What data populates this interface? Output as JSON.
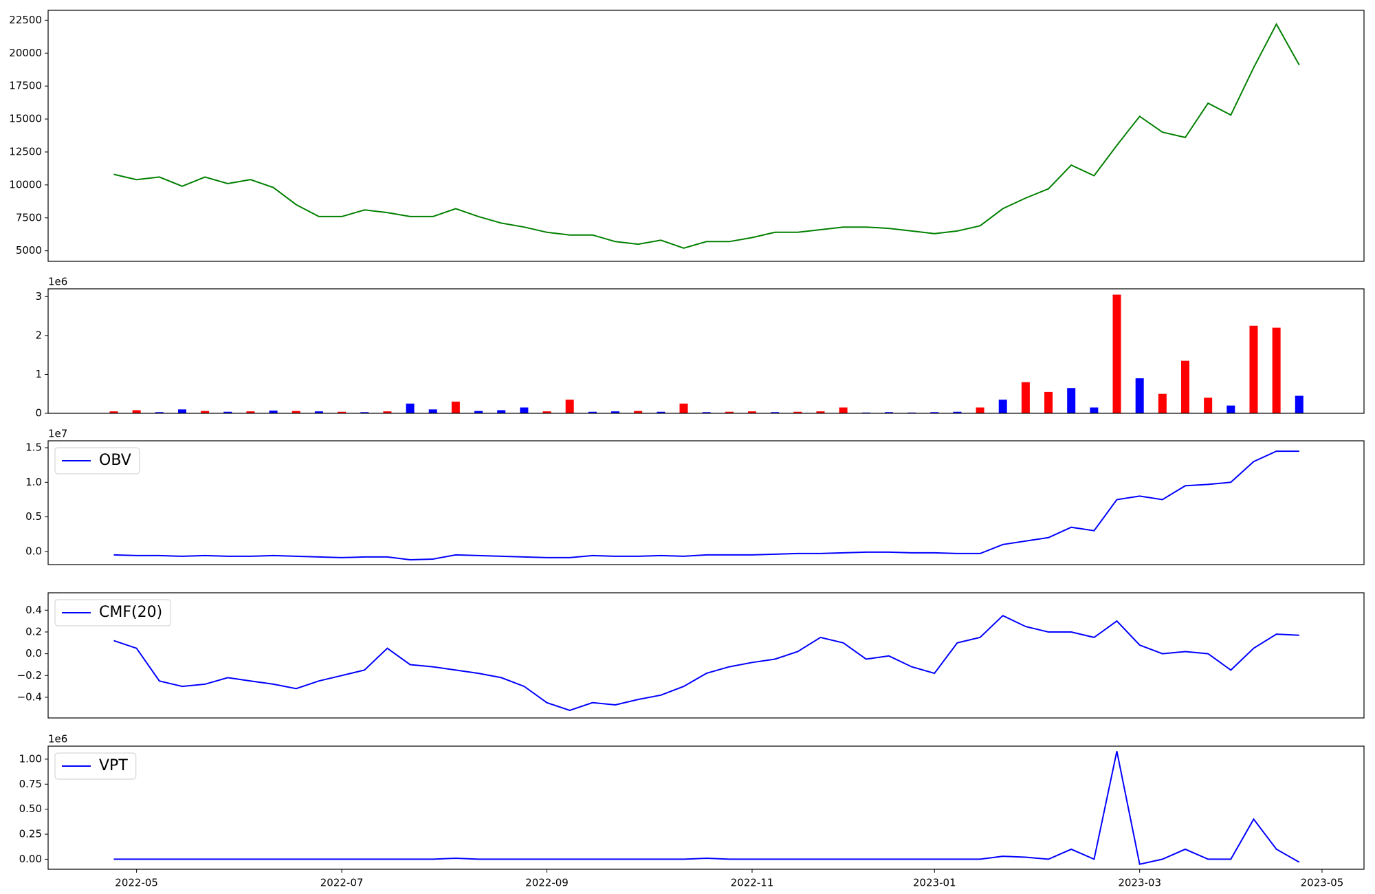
{
  "chart_data": [
    {
      "type": "line",
      "color": "#008000",
      "values": [
        null,
        null,
        null,
        10800,
        10400,
        10600,
        9900,
        10600,
        10100,
        10400,
        9800,
        8500,
        7600,
        7600,
        8100,
        7900,
        7600,
        7600,
        8200,
        7600,
        7100,
        6800,
        6400,
        6200,
        6200,
        5700,
        5500,
        5800,
        5200,
        5700,
        5700,
        6000,
        6400,
        6400,
        6600,
        6800,
        6800,
        6700,
        6500,
        6300,
        6500,
        6900,
        8200,
        9000,
        9700,
        11500,
        10700,
        13000,
        15200,
        14000,
        13600,
        16200,
        15300,
        18900,
        22200,
        19100,
        null,
        null,
        null
      ],
      "ylim": [
        4200,
        23250
      ],
      "yticks": [
        5000,
        7500,
        10000,
        12500,
        15000,
        17500,
        20000,
        22500
      ]
    },
    {
      "type": "bar",
      "values": [
        null,
        null,
        null,
        0.05,
        0.08,
        0.03,
        0.1,
        0.06,
        0.04,
        0.05,
        0.07,
        0.06,
        0.05,
        0.04,
        0.03,
        0.05,
        0.25,
        0.1,
        0.3,
        0.06,
        0.08,
        0.15,
        0.05,
        0.35,
        0.04,
        0.05,
        0.06,
        0.04,
        0.25,
        0.03,
        0.04,
        0.05,
        0.03,
        0.04,
        0.05,
        0.15,
        0.02,
        0.03,
        0.02,
        0.03,
        0.04,
        0.15,
        0.35,
        0.8,
        0.55,
        0.65,
        0.15,
        3.05,
        0.9,
        0.5,
        1.35,
        0.4,
        0.2,
        2.25,
        2.2,
        0.45,
        null,
        null,
        null
      ],
      "colors": [
        null,
        null,
        null,
        "#ff0000",
        "#ff0000",
        "#0000ff",
        "#0000ff",
        "#ff0000",
        "#0000ff",
        "#ff0000",
        "#0000ff",
        "#ff0000",
        "#0000ff",
        "#ff0000",
        "#0000ff",
        "#ff0000",
        "#0000ff",
        "#0000ff",
        "#ff0000",
        "#0000ff",
        "#0000ff",
        "#0000ff",
        "#ff0000",
        "#ff0000",
        "#0000ff",
        "#0000ff",
        "#ff0000",
        "#0000ff",
        "#ff0000",
        "#0000ff",
        "#ff0000",
        "#ff0000",
        "#0000ff",
        "#ff0000",
        "#ff0000",
        "#ff0000",
        "#0000ff",
        "#0000ff",
        "#0000ff",
        "#0000ff",
        "#0000ff",
        "#ff0000",
        "#0000ff",
        "#ff0000",
        "#ff0000",
        "#0000ff",
        "#0000ff",
        "#ff0000",
        "#0000ff",
        "#ff0000",
        "#ff0000",
        "#ff0000",
        "#0000ff",
        "#ff0000",
        "#ff0000",
        "#0000ff",
        null,
        null,
        null
      ],
      "ylim": [
        0,
        3.2
      ],
      "yticks": [
        0,
        1,
        2,
        3
      ],
      "offset_label": "1e6"
    },
    {
      "type": "line",
      "legend": "upper left",
      "series": [
        {
          "name": "OBV",
          "color": "#0000ff",
          "values": [
            null,
            null,
            null,
            -0.05,
            -0.06,
            -0.06,
            -0.07,
            -0.06,
            -0.07,
            -0.07,
            -0.06,
            -0.07,
            -0.08,
            -0.09,
            -0.08,
            -0.08,
            -0.12,
            -0.11,
            -0.05,
            -0.06,
            -0.07,
            -0.08,
            -0.09,
            -0.09,
            -0.06,
            -0.07,
            -0.07,
            -0.06,
            -0.07,
            -0.05,
            -0.05,
            -0.05,
            -0.04,
            -0.03,
            -0.03,
            -0.02,
            -0.01,
            -0.01,
            -0.02,
            -0.02,
            -0.03,
            -0.03,
            0.1,
            0.15,
            0.2,
            0.35,
            0.3,
            0.75,
            0.8,
            0.75,
            0.95,
            0.97,
            1.0,
            1.3,
            1.45,
            1.45,
            null,
            null,
            null
          ]
        }
      ],
      "ylim": [
        -0.19,
        1.6
      ],
      "yticks": [
        {
          "value": 0,
          "label": "0.0"
        },
        0.5,
        {
          "value": 1,
          "label": "1.0"
        },
        1.5
      ],
      "offset_label": "1e7"
    },
    {
      "type": "line",
      "legend": "upper left",
      "series": [
        {
          "name": "CMF(20)",
          "color": "#0000ff",
          "values": [
            null,
            null,
            null,
            0.12,
            0.05,
            -0.25,
            -0.3,
            -0.28,
            -0.22,
            -0.25,
            -0.28,
            -0.32,
            -0.25,
            -0.2,
            -0.15,
            0.05,
            -0.1,
            -0.12,
            -0.15,
            -0.18,
            -0.22,
            -0.3,
            -0.45,
            -0.52,
            -0.45,
            -0.47,
            -0.42,
            -0.38,
            -0.3,
            -0.18,
            -0.12,
            -0.08,
            -0.05,
            0.02,
            0.15,
            0.1,
            -0.05,
            -0.02,
            -0.12,
            -0.18,
            0.1,
            0.15,
            0.35,
            0.25,
            0.2,
            0.2,
            0.15,
            0.3,
            0.08,
            0.0,
            0.02,
            0.0,
            -0.15,
            0.05,
            0.18,
            0.17,
            null,
            null,
            null
          ]
        }
      ],
      "ylim": [
        -0.59,
        0.56
      ],
      "yticks": [
        {
          "value": -0.4,
          "label": "−0.4"
        },
        {
          "value": -0.2,
          "label": "−0.2"
        },
        {
          "value": 0,
          "label": "0.0"
        },
        0.2,
        0.4
      ]
    },
    {
      "type": "line",
      "legend": "upper left",
      "series": [
        {
          "name": "VPT",
          "color": "#0000ff",
          "values": [
            null,
            null,
            null,
            0,
            0,
            0,
            0,
            0,
            0,
            0,
            0,
            0,
            0,
            0,
            0,
            0,
            0,
            0,
            0.01,
            0,
            0,
            0,
            0,
            0,
            0,
            0,
            0,
            0,
            0,
            0.01,
            0,
            0,
            0,
            0,
            0,
            0,
            0,
            0,
            0,
            0,
            0,
            0,
            0.03,
            0.02,
            0.0,
            0.1,
            0.0,
            1.08,
            -0.05,
            0.0,
            0.1,
            0.0,
            0.0,
            0.4,
            0.1,
            -0.03,
            null,
            null,
            null
          ]
        }
      ],
      "ylim": [
        -0.1,
        1.13
      ],
      "yticks": [
        {
          "value": 0,
          "label": "0.00"
        },
        0.25,
        {
          "value": 0.5,
          "label": "0.50"
        },
        0.75,
        {
          "value": 1,
          "label": "1.00"
        }
      ],
      "offset_label": "1e6",
      "categories": [
        null,
        null,
        null,
        null,
        "2022-05",
        null,
        null,
        null,
        null,
        null,
        null,
        null,
        null,
        "2022-07",
        null,
        null,
        null,
        null,
        null,
        null,
        null,
        null,
        "2022-09",
        null,
        null,
        null,
        null,
        null,
        null,
        null,
        null,
        "2022-11",
        null,
        null,
        null,
        null,
        null,
        null,
        null,
        "2023-01",
        null,
        null,
        null,
        null,
        null,
        null,
        null,
        null,
        "2023-03",
        null,
        null,
        null,
        null,
        null,
        null,
        null,
        "2023-05",
        null,
        null
      ]
    }
  ]
}
